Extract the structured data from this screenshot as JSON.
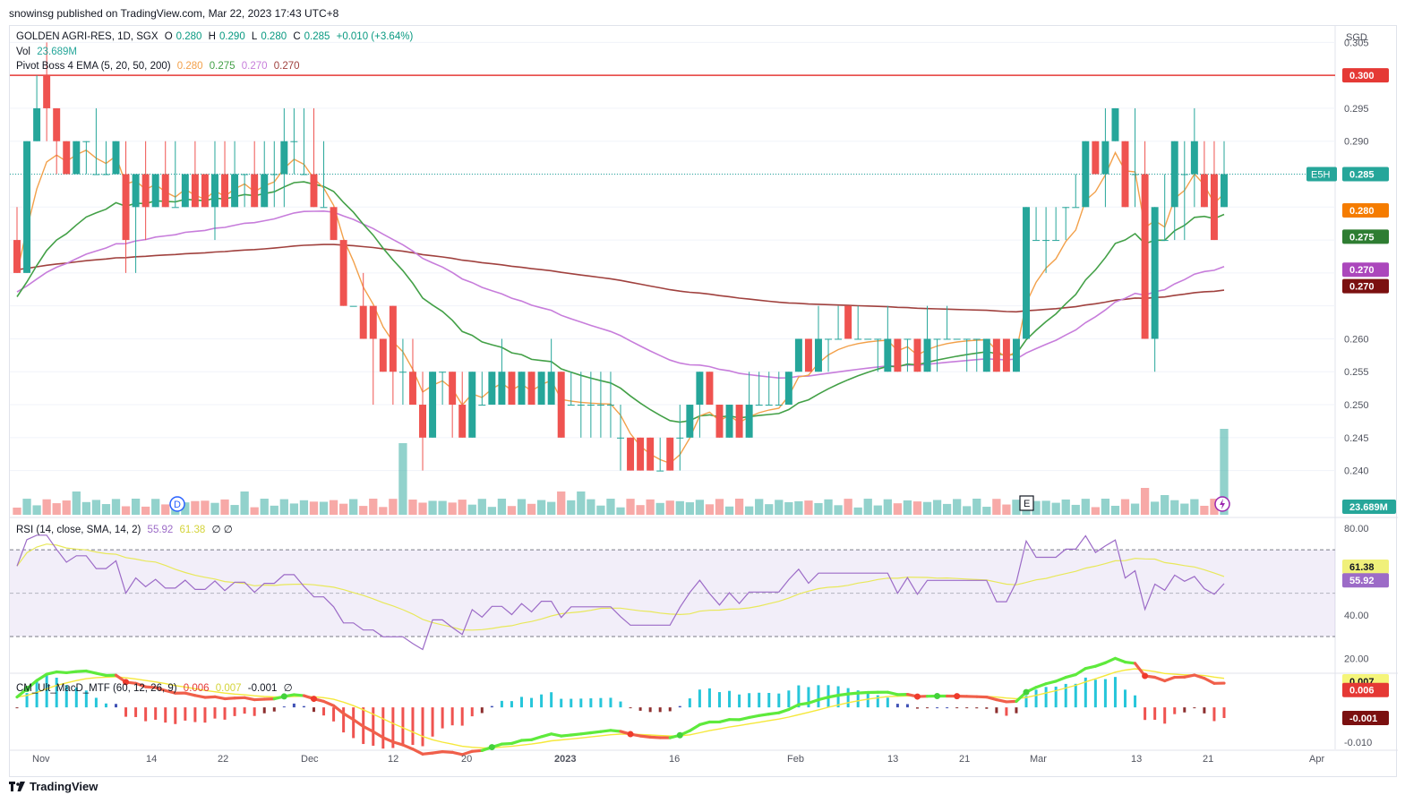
{
  "publish_line": "snowinsg published on TradingView.com, Mar 22, 2023 17:43 UTC+8",
  "footer_brand": "TradingView",
  "currency": "SGD",
  "legend": {
    "symbol": "GOLDEN AGRI-RES, 1D, SGX",
    "o_label": "O",
    "o": "0.280",
    "h_label": "H",
    "h": "0.290",
    "l_label": "L",
    "l": "0.280",
    "c_label": "C",
    "c": "0.285",
    "change": "+0.010 (+3.64%)",
    "vol_label": "Vol",
    "vol": "23.689M",
    "ema_label": "Pivot Boss 4 EMA (5, 20, 50, 200)",
    "ema5": "0.280",
    "ema20": "0.275",
    "ema50": "0.270",
    "ema200": "0.270"
  },
  "rsi_legend": {
    "label": "RSI (14, close, SMA, 14, 2)",
    "rsi": "55.92",
    "sma": "61.38",
    "extra": "∅ ∅"
  },
  "macd_legend": {
    "label": "CM_Ult_MacD_MTF (60, 12, 26, 9)",
    "v1": "0.006",
    "v2": "0.007",
    "v3": "-0.001",
    "extra": "∅"
  },
  "colors": {
    "up": "#26a69a",
    "down": "#ef5350",
    "ema5": "#f2a04a",
    "ema20": "#43a047",
    "ema50": "#c77ddb",
    "ema200": "#a0413e",
    "resistance": "#e53935",
    "rsi": "#9c6bc7",
    "rsi_sma": "#e8e85a"
  },
  "price_labels": {
    "resistance": "0.300",
    "e5h": "E5H",
    "last": "0.285",
    "ema5": "0.280",
    "ema20": "0.275",
    "ema50": "0.270",
    "ema200": "0.270",
    "volume": "23.689M",
    "rsi_sma": "61.38",
    "rsi": "55.92",
    "macd_top": "0.007",
    "macd_mid": "0.006",
    "macd_low": "-0.001"
  },
  "axis": {
    "price_ticks": [
      "0.305",
      "0.295",
      "0.290",
      "0.280",
      "0.270",
      "0.260",
      "0.255",
      "0.250",
      "0.245",
      "0.240"
    ],
    "rsi_ticks": [
      "80.00",
      "40.00",
      "20.00"
    ],
    "macd_ticks": [
      "-0.010"
    ],
    "x_ticks": [
      "Nov",
      "14",
      "22",
      "Dec",
      "12",
      "20",
      "2023",
      "16",
      "Feb",
      "13",
      "21",
      "Mar",
      "13",
      "21",
      "Apr"
    ]
  },
  "events": {
    "dividend": "D",
    "earnings": "E"
  },
  "chart_data": {
    "type": "candlestick",
    "title": "GOLDEN AGRI-RES, 1D, SGX",
    "ylabel": "SGD",
    "ylim": [
      0.2375,
      0.306
    ],
    "resistance_level": 0.3,
    "ohlc": [
      [
        0.275,
        0.28,
        0.27,
        0.27
      ],
      [
        0.27,
        0.29,
        0.27,
        0.29
      ],
      [
        0.29,
        0.3,
        0.29,
        0.295
      ],
      [
        0.3,
        0.305,
        0.29,
        0.295
      ],
      [
        0.295,
        0.295,
        0.285,
        0.29
      ],
      [
        0.29,
        0.29,
        0.285,
        0.285
      ],
      [
        0.285,
        0.29,
        0.285,
        0.29
      ],
      [
        0.29,
        0.29,
        0.285,
        0.29
      ],
      [
        0.285,
        0.295,
        0.285,
        0.285
      ],
      [
        0.285,
        0.29,
        0.285,
        0.285
      ],
      [
        0.285,
        0.29,
        0.285,
        0.29
      ],
      [
        0.285,
        0.29,
        0.27,
        0.275
      ],
      [
        0.28,
        0.285,
        0.27,
        0.285
      ],
      [
        0.285,
        0.29,
        0.275,
        0.28
      ],
      [
        0.28,
        0.285,
        0.28,
        0.285
      ],
      [
        0.285,
        0.29,
        0.28,
        0.28
      ],
      [
        0.28,
        0.29,
        0.28,
        0.28
      ],
      [
        0.28,
        0.285,
        0.28,
        0.285
      ],
      [
        0.285,
        0.29,
        0.28,
        0.28
      ],
      [
        0.285,
        0.285,
        0.28,
        0.28
      ],
      [
        0.28,
        0.29,
        0.275,
        0.285
      ],
      [
        0.285,
        0.29,
        0.28,
        0.28
      ],
      [
        0.28,
        0.29,
        0.28,
        0.285
      ],
      [
        0.285,
        0.285,
        0.28,
        0.285
      ],
      [
        0.285,
        0.29,
        0.28,
        0.28
      ],
      [
        0.28,
        0.29,
        0.28,
        0.285
      ],
      [
        0.285,
        0.29,
        0.28,
        0.285
      ],
      [
        0.285,
        0.295,
        0.28,
        0.29
      ],
      [
        0.29,
        0.295,
        0.285,
        0.29
      ],
      [
        0.285,
        0.295,
        0.285,
        0.285
      ],
      [
        0.285,
        0.295,
        0.28,
        0.28
      ],
      [
        0.28,
        0.29,
        0.28,
        0.28
      ],
      [
        0.28,
        0.28,
        0.275,
        0.275
      ],
      [
        0.275,
        0.275,
        0.265,
        0.265
      ],
      [
        0.265,
        0.265,
        0.265,
        0.265
      ],
      [
        0.265,
        0.27,
        0.26,
        0.26
      ],
      [
        0.265,
        0.265,
        0.25,
        0.26
      ],
      [
        0.26,
        0.26,
        0.255,
        0.255
      ],
      [
        0.265,
        0.265,
        0.25,
        0.255
      ],
      [
        0.255,
        0.26,
        0.25,
        0.255
      ],
      [
        0.255,
        0.26,
        0.25,
        0.25
      ],
      [
        0.25,
        0.255,
        0.24,
        0.245
      ],
      [
        0.245,
        0.255,
        0.245,
        0.255
      ],
      [
        0.255,
        0.255,
        0.25,
        0.255
      ],
      [
        0.255,
        0.255,
        0.245,
        0.25
      ],
      [
        0.25,
        0.255,
        0.245,
        0.245
      ],
      [
        0.245,
        0.255,
        0.245,
        0.255
      ],
      [
        0.25,
        0.255,
        0.25,
        0.25
      ],
      [
        0.25,
        0.255,
        0.25,
        0.255
      ],
      [
        0.25,
        0.26,
        0.25,
        0.255
      ],
      [
        0.255,
        0.255,
        0.25,
        0.25
      ],
      [
        0.25,
        0.255,
        0.25,
        0.255
      ],
      [
        0.255,
        0.255,
        0.25,
        0.25
      ],
      [
        0.25,
        0.255,
        0.25,
        0.255
      ],
      [
        0.25,
        0.26,
        0.25,
        0.255
      ],
      [
        0.255,
        0.255,
        0.245,
        0.245
      ],
      [
        0.25,
        0.255,
        0.25,
        0.25
      ],
      [
        0.25,
        0.255,
        0.245,
        0.25
      ],
      [
        0.25,
        0.255,
        0.245,
        0.25
      ],
      [
        0.25,
        0.255,
        0.245,
        0.25
      ],
      [
        0.25,
        0.255,
        0.245,
        0.25
      ],
      [
        0.245,
        0.25,
        0.24,
        0.245
      ],
      [
        0.245,
        0.245,
        0.24,
        0.24
      ],
      [
        0.245,
        0.245,
        0.24,
        0.24
      ],
      [
        0.245,
        0.245,
        0.24,
        0.24
      ],
      [
        0.24,
        0.245,
        0.24,
        0.24
      ],
      [
        0.245,
        0.245,
        0.24,
        0.24
      ],
      [
        0.245,
        0.25,
        0.24,
        0.245
      ],
      [
        0.245,
        0.25,
        0.245,
        0.25
      ],
      [
        0.25,
        0.255,
        0.245,
        0.255
      ],
      [
        0.255,
        0.255,
        0.25,
        0.25
      ],
      [
        0.25,
        0.25,
        0.245,
        0.245
      ],
      [
        0.245,
        0.25,
        0.245,
        0.25
      ],
      [
        0.25,
        0.25,
        0.245,
        0.245
      ],
      [
        0.245,
        0.255,
        0.245,
        0.25
      ],
      [
        0.25,
        0.255,
        0.25,
        0.25
      ],
      [
        0.25,
        0.255,
        0.25,
        0.25
      ],
      [
        0.25,
        0.255,
        0.25,
        0.25
      ],
      [
        0.25,
        0.255,
        0.25,
        0.255
      ],
      [
        0.255,
        0.26,
        0.255,
        0.26
      ],
      [
        0.26,
        0.26,
        0.255,
        0.255
      ],
      [
        0.255,
        0.265,
        0.255,
        0.26
      ],
      [
        0.26,
        0.26,
        0.255,
        0.26
      ],
      [
        0.26,
        0.265,
        0.26,
        0.26
      ],
      [
        0.265,
        0.265,
        0.26,
        0.26
      ],
      [
        0.26,
        0.265,
        0.26,
        0.26
      ],
      [
        0.26,
        0.26,
        0.26,
        0.26
      ],
      [
        0.26,
        0.26,
        0.255,
        0.26
      ],
      [
        0.255,
        0.265,
        0.255,
        0.26
      ],
      [
        0.26,
        0.26,
        0.255,
        0.255
      ],
      [
        0.26,
        0.26,
        0.255,
        0.26
      ],
      [
        0.26,
        0.26,
        0.255,
        0.255
      ],
      [
        0.255,
        0.265,
        0.255,
        0.26
      ],
      [
        0.26,
        0.26,
        0.255,
        0.26
      ],
      [
        0.26,
        0.265,
        0.26,
        0.26
      ],
      [
        0.26,
        0.26,
        0.26,
        0.26
      ],
      [
        0.26,
        0.26,
        0.255,
        0.26
      ],
      [
        0.26,
        0.26,
        0.255,
        0.26
      ],
      [
        0.255,
        0.26,
        0.255,
        0.26
      ],
      [
        0.26,
        0.26,
        0.255,
        0.255
      ],
      [
        0.26,
        0.26,
        0.255,
        0.255
      ],
      [
        0.255,
        0.26,
        0.255,
        0.26
      ],
      [
        0.26,
        0.28,
        0.26,
        0.28
      ],
      [
        0.275,
        0.28,
        0.275,
        0.275
      ],
      [
        0.275,
        0.28,
        0.27,
        0.275
      ],
      [
        0.275,
        0.28,
        0.275,
        0.275
      ],
      [
        0.28,
        0.28,
        0.275,
        0.28
      ],
      [
        0.28,
        0.285,
        0.28,
        0.28
      ],
      [
        0.28,
        0.29,
        0.28,
        0.29
      ],
      [
        0.29,
        0.29,
        0.285,
        0.285
      ],
      [
        0.285,
        0.295,
        0.28,
        0.29
      ],
      [
        0.29,
        0.295,
        0.29,
        0.295
      ],
      [
        0.29,
        0.29,
        0.28,
        0.28
      ],
      [
        0.285,
        0.295,
        0.28,
        0.285
      ],
      [
        0.285,
        0.29,
        0.26,
        0.26
      ],
      [
        0.26,
        0.28,
        0.255,
        0.28
      ],
      [
        0.275,
        0.285,
        0.275,
        0.275
      ],
      [
        0.28,
        0.29,
        0.275,
        0.29
      ],
      [
        0.285,
        0.29,
        0.275,
        0.285
      ],
      [
        0.285,
        0.295,
        0.28,
        0.29
      ],
      [
        0.285,
        0.29,
        0.28,
        0.28
      ],
      [
        0.285,
        0.29,
        0.275,
        0.275
      ],
      [
        0.28,
        0.29,
        0.28,
        0.285
      ]
    ],
    "ema_periods": [
      5,
      20,
      50,
      200
    ],
    "ema200_start": 0.2705,
    "volume_last": "23.689M",
    "rsi": {
      "overbought": 70,
      "oversold": 30,
      "ylim": [
        16,
        82
      ],
      "last": 55.92,
      "sma_last": 61.38
    },
    "macd": {
      "ylim": [
        -0.011,
        0.0085
      ],
      "last": [
        0.006,
        0.007,
        -0.001
      ]
    }
  }
}
